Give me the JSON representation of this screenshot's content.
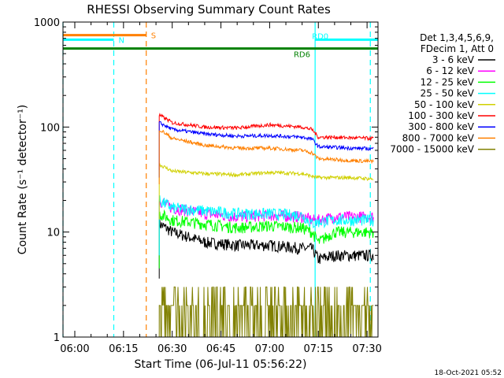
{
  "chart_data": {
    "type": "line",
    "title": "RHESSI Observing Summary Count Rates",
    "xlabel": "Start Time (06-Jul-11 05:56:22)",
    "ylabel": "Count Rate (s⁻¹ detector⁻¹)",
    "yscale": "log",
    "ylim": [
      1,
      1000
    ],
    "xlim_minutes_after_start": [
      0,
      97
    ],
    "x_ticks": [
      "06:00",
      "06:15",
      "06:30",
      "06:45",
      "07:00",
      "07:15",
      "07:30"
    ],
    "y_ticks": [
      "1",
      "10",
      "100",
      "1000"
    ],
    "legend": {
      "position": "right",
      "header": [
        "Det 1,3,4,5,6,9,",
        "FDecim 1, Att 0"
      ],
      "entries": [
        {
          "label": "3 - 6 keV",
          "color": "#000000"
        },
        {
          "label": "6 - 12 keV",
          "color": "#ff00ff"
        },
        {
          "label": "12 - 25 keV",
          "color": "#00ff00"
        },
        {
          "label": "25 - 50 keV",
          "color": "#00ffff"
        },
        {
          "label": "50 - 100 keV",
          "color": "#d0d000"
        },
        {
          "label": "100 - 300 keV",
          "color": "#ff0000"
        },
        {
          "label": "300 - 800 keV",
          "color": "#0000ff"
        },
        {
          "label": "800 - 7000 keV",
          "color": "#ff8000"
        },
        {
          "label": "7000 - 15000 keV",
          "color": "#808000"
        }
      ]
    },
    "flag_bars": [
      {
        "label": "S",
        "color": "#ff8000",
        "y": 750
      },
      {
        "label": "N",
        "color": "#00ffff",
        "y": 680
      },
      {
        "label": "RD0",
        "color": "#00ffff",
        "y": 680
      },
      {
        "label": "RD6",
        "color": "#008000",
        "y": 560
      }
    ],
    "markers": [
      {
        "time": "05:56:22",
        "color": "#00ffff",
        "style": "dashed"
      },
      {
        "time": "06:12",
        "color": "#00ffff",
        "style": "dashed"
      },
      {
        "time": "06:22",
        "color": "#ff8000",
        "style": "dashed"
      },
      {
        "time": "07:14",
        "color": "#00ffff",
        "style": "solid"
      },
      {
        "time": "07:31",
        "color": "#00ffff",
        "style": "dashed"
      }
    ],
    "series": [
      {
        "name": "3 - 6 keV",
        "color": "#000000",
        "t": [
          "06:26",
          "06:30",
          "06:40",
          "06:50",
          "07:00",
          "07:10",
          "07:13",
          "07:15",
          "07:20",
          "07:25",
          "07:32"
        ],
        "values": [
          12,
          10,
          8,
          7.5,
          7.5,
          7,
          7,
          5.5,
          6,
          6,
          6
        ]
      },
      {
        "name": "6 - 12 keV",
        "color": "#ff00ff",
        "t": [
          "06:26",
          "06:30",
          "06:40",
          "06:50",
          "07:00",
          "07:10",
          "07:13",
          "07:15",
          "07:20",
          "07:25",
          "07:32"
        ],
        "values": [
          20,
          17,
          15,
          14,
          14.5,
          14,
          13,
          13,
          14,
          14,
          14
        ]
      },
      {
        "name": "12 - 25 keV",
        "color": "#00ff00",
        "t": [
          "06:26",
          "06:30",
          "06:40",
          "06:50",
          "07:00",
          "07:10",
          "07:13",
          "07:15",
          "07:20",
          "07:25",
          "07:32"
        ],
        "values": [
          15,
          13,
          12,
          11,
          11.5,
          11,
          10,
          8,
          10,
          10,
          10
        ]
      },
      {
        "name": "25 - 50 keV",
        "color": "#00ffff",
        "t": [
          "06:26",
          "06:30",
          "06:40",
          "06:50",
          "07:00",
          "07:10",
          "07:13",
          "07:15",
          "07:20",
          "07:25",
          "07:32"
        ],
        "values": [
          20,
          17,
          16,
          15,
          15,
          14.5,
          12,
          12.5,
          13,
          13,
          13
        ]
      },
      {
        "name": "50 - 100 keV",
        "color": "#d0d000",
        "t": [
          "06:26",
          "06:30",
          "06:40",
          "06:50",
          "07:00",
          "07:10",
          "07:13",
          "07:15",
          "07:20",
          "07:25",
          "07:32"
        ],
        "values": [
          44,
          38,
          36,
          35,
          37,
          36,
          34,
          33,
          33,
          33,
          32
        ]
      },
      {
        "name": "100 - 300 keV",
        "color": "#ff0000",
        "t": [
          "06:26",
          "06:30",
          "06:40",
          "06:50",
          "07:00",
          "07:10",
          "07:13",
          "07:15",
          "07:20",
          "07:25",
          "07:32"
        ],
        "values": [
          130,
          110,
          100,
          98,
          105,
          100,
          95,
          80,
          80,
          79,
          78
        ]
      },
      {
        "name": "300 - 800 keV",
        "color": "#0000ff",
        "t": [
          "06:26",
          "06:30",
          "06:40",
          "06:50",
          "07:00",
          "07:10",
          "07:13",
          "07:15",
          "07:20",
          "07:25",
          "07:32"
        ],
        "values": [
          110,
          95,
          86,
          82,
          83,
          80,
          77,
          65,
          64,
          63,
          62
        ]
      },
      {
        "name": "800 - 7000 keV",
        "color": "#ff8000",
        "t": [
          "06:26",
          "06:30",
          "06:40",
          "06:50",
          "07:00",
          "07:10",
          "07:13",
          "07:15",
          "07:20",
          "07:25",
          "07:32"
        ],
        "values": [
          95,
          78,
          67,
          63,
          63,
          60,
          57,
          50,
          49,
          48,
          47
        ]
      },
      {
        "name": "7000 - 15000 keV",
        "color": "#808000",
        "t": [
          "06:26",
          "06:30",
          "06:40",
          "06:50",
          "07:00",
          "07:10",
          "07:13",
          "07:15",
          "07:20",
          "07:25",
          "07:32"
        ],
        "values": [
          2,
          1.8,
          1.6,
          1.7,
          2,
          1.9,
          1.6,
          1.5,
          1.5,
          1.4,
          1.4
        ]
      }
    ]
  },
  "footer": {
    "timestamp": "18-Oct-2021 05:52"
  }
}
